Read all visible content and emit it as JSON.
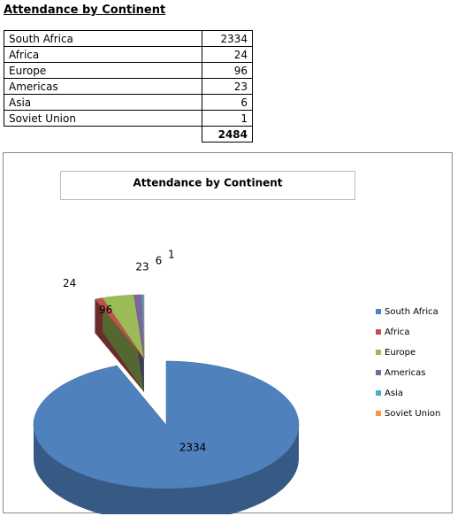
{
  "title": "Attendance by Continent",
  "table": {
    "rows": [
      [
        "South Africa",
        "2334"
      ],
      [
        "Africa",
        "24"
      ],
      [
        "Europe",
        "96"
      ],
      [
        "Americas",
        "23"
      ],
      [
        "Asia",
        "6"
      ],
      [
        "Soviet Union",
        "1"
      ]
    ],
    "total": "2484"
  },
  "chart_data": {
    "type": "pie",
    "title": "Attendance by Continent",
    "categories": [
      "South Africa",
      "Africa",
      "Europe",
      "Americas",
      "Asia",
      "Soviet Union"
    ],
    "values": [
      2334,
      24,
      96,
      23,
      6,
      1
    ],
    "colors": [
      "#4f81bd",
      "#c0504d",
      "#9bbb59",
      "#8064a2",
      "#4bacc6",
      "#f79646"
    ],
    "legend": "right"
  }
}
